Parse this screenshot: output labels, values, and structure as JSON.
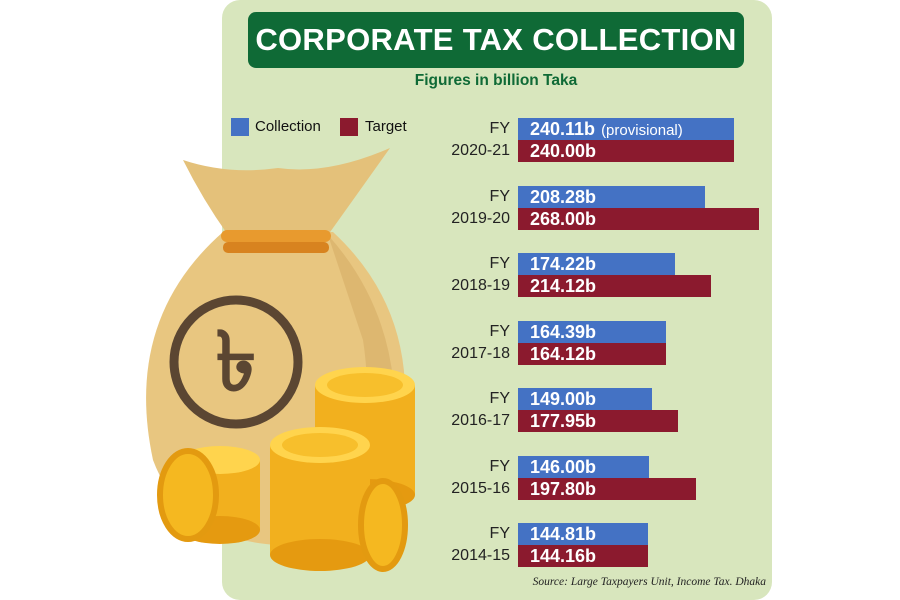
{
  "title": "CORPORATE TAX COLLECTION",
  "subtitle": "Figures in billion Taka",
  "legend": {
    "collection": "Collection",
    "target": "Target"
  },
  "colors": {
    "collection": "#4472c4",
    "target": "#8b1a2e",
    "title_bg": "#0f6a36",
    "panel_bg": "#d8e6bd"
  },
  "source": "Source: Large Taxpayers Unit, Income Tax. Dhaka",
  "illustration": {
    "icon": "money-bag-with-taka-symbol-and-coins",
    "symbol": "৳"
  },
  "chart_data": {
    "type": "bar",
    "orientation": "horizontal",
    "unit": "billion Taka",
    "categories": [
      "FY 2020-21",
      "FY 2019-20",
      "FY 2018-19",
      "FY 2017-18",
      "FY 2016-17",
      "FY 2015-16",
      "FY 2014-15"
    ],
    "series": [
      {
        "name": "Collection",
        "values": [
          240.11,
          208.28,
          174.22,
          164.39,
          149.0,
          146.0,
          144.81
        ]
      },
      {
        "name": "Target",
        "values": [
          240.0,
          268.0,
          214.12,
          164.12,
          177.95,
          197.8,
          144.16
        ]
      }
    ],
    "rows": [
      {
        "fy": "FY",
        "year": "2020-21",
        "collection_label": "240.11b",
        "collection_note": "(provisional)",
        "target_label": "240.00b"
      },
      {
        "fy": "FY",
        "year": "2019-20",
        "collection_label": "208.28b",
        "collection_note": "",
        "target_label": "268.00b"
      },
      {
        "fy": "FY",
        "year": "2018-19",
        "collection_label": "174.22b",
        "collection_note": "",
        "target_label": "214.12b"
      },
      {
        "fy": "FY",
        "year": "2017-18",
        "collection_label": "164.39b",
        "collection_note": "",
        "target_label": "164.12b"
      },
      {
        "fy": "FY",
        "year": "2016-17",
        "collection_label": "149.00b",
        "collection_note": "",
        "target_label": "177.95b"
      },
      {
        "fy": "FY",
        "year": "2015-16",
        "collection_label": "146.00b",
        "collection_note": "",
        "target_label": "197.80b"
      },
      {
        "fy": "FY",
        "year": "2014-15",
        "collection_label": "144.81b",
        "collection_note": "",
        "target_label": "144.16b"
      }
    ]
  }
}
